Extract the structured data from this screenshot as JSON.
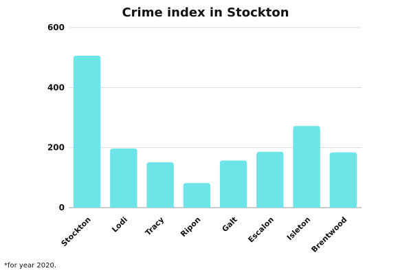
{
  "chart_data": {
    "type": "bar",
    "title": "Crime index in Stockton",
    "categories": [
      "Stockton",
      "Lodi",
      "Tracy",
      "Ripon",
      "Galt",
      "Escalon",
      "Isleton",
      "Brentwood"
    ],
    "values": [
      506,
      197,
      151,
      82,
      157,
      186,
      272,
      184
    ],
    "ylim": [
      0,
      600
    ],
    "yticks": [
      0,
      200,
      400,
      600
    ],
    "xlabel": "",
    "ylabel": "",
    "grid": true,
    "bar_color": "#6de4e8",
    "footnote": "*for year 2020."
  }
}
